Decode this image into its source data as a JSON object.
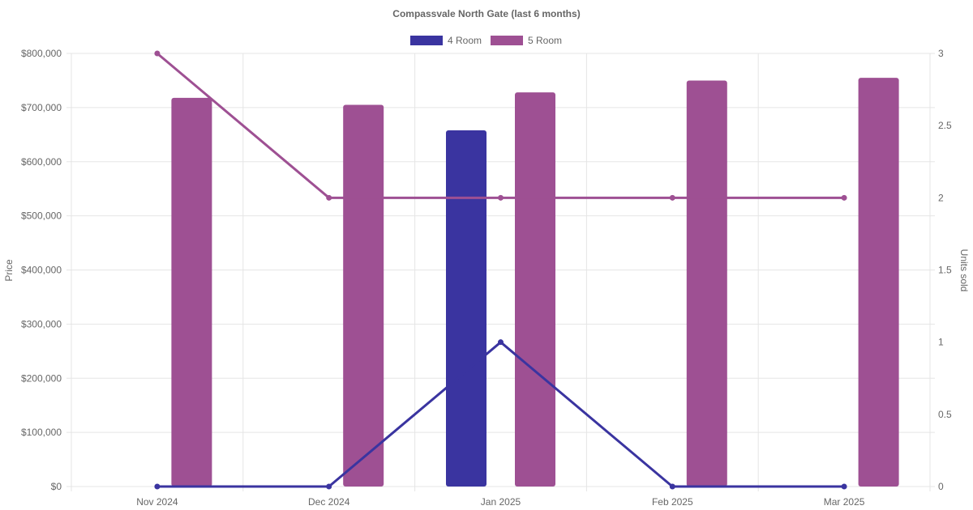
{
  "chart_data": {
    "type": "bar",
    "title": "Compassvale North Gate (last 6 months)",
    "categories": [
      "Nov 2024",
      "Dec 2024",
      "Jan 2025",
      "Feb 2025",
      "Mar 2025"
    ],
    "y_left": {
      "label": "Price",
      "ticks": [
        "$0",
        "$100,000",
        "$200,000",
        "$300,000",
        "$400,000",
        "$500,000",
        "$600,000",
        "$700,000",
        "$800,000"
      ],
      "range": [
        0,
        800000
      ]
    },
    "y_right": {
      "label": "Units sold",
      "ticks": [
        "0",
        "0.5",
        "1",
        "1.5",
        "2",
        "2.5",
        "3"
      ],
      "range": [
        0,
        3
      ]
    },
    "grid": true,
    "legend_position": "top-center",
    "legend": [
      {
        "name": "4 Room",
        "color": "#3a34a0"
      },
      {
        "name": "5 Room",
        "color": "#9e5093"
      }
    ],
    "bar_series": [
      {
        "name": "4 Room",
        "color": "#3a34a0",
        "values": [
          null,
          null,
          658000,
          null,
          null
        ]
      },
      {
        "name": "5 Room",
        "color": "#9e5093",
        "values": [
          718000,
          705000,
          728000,
          750000,
          755000
        ]
      }
    ],
    "line_series": [
      {
        "name": "4 Room",
        "color": "#3a34a0",
        "axis": "right",
        "values": [
          0,
          0,
          1,
          0,
          0
        ]
      },
      {
        "name": "5 Room",
        "color": "#9e5093",
        "axis": "right",
        "values": [
          3,
          2,
          2,
          2,
          2
        ]
      }
    ]
  }
}
